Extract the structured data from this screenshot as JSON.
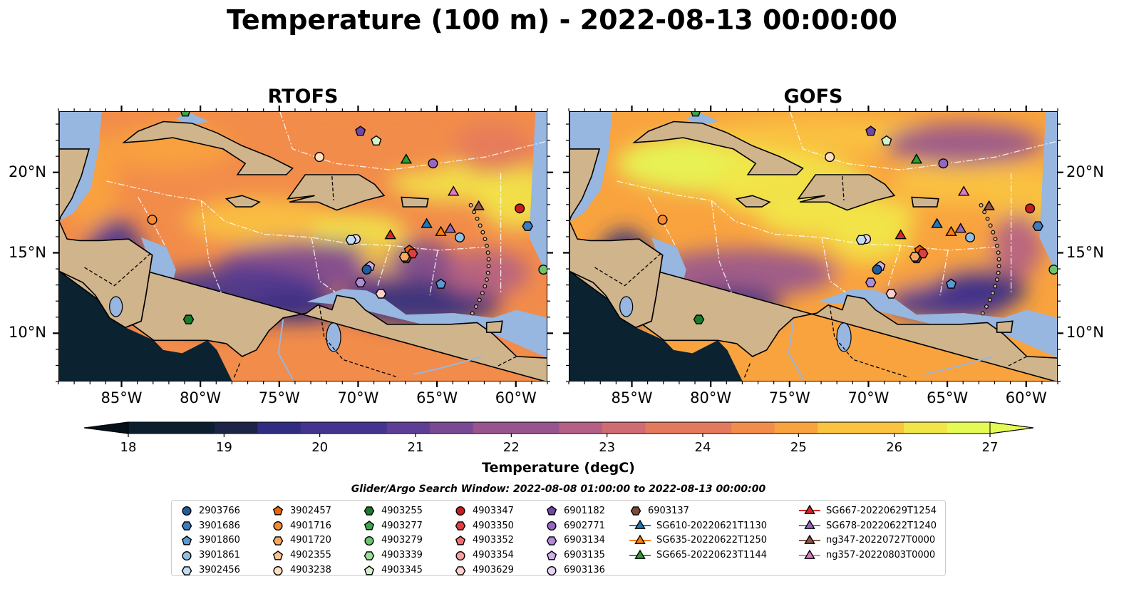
{
  "title": "Temperature (100 m) - 2022-08-13 00:00:00",
  "panels": [
    {
      "title": "RTOFS"
    },
    {
      "title": "GOFS"
    }
  ],
  "axes": {
    "lon_ticks": [
      "85°W",
      "80°W",
      "75°W",
      "70°W",
      "65°W",
      "60°W"
    ],
    "lon_values": [
      -85,
      -80,
      -75,
      -70,
      -65,
      -60
    ],
    "lat_ticks": [
      "20°N",
      "15°N",
      "10°N"
    ],
    "lat_values": [
      20,
      15,
      10
    ],
    "extent": {
      "lon": [
        -89,
        -58
      ],
      "lat": [
        7,
        23.8
      ]
    }
  },
  "colorbar": {
    "label": "Temperature (degC)",
    "ticks": [
      "18",
      "19",
      "20",
      "21",
      "22",
      "23",
      "24",
      "25",
      "26",
      "27"
    ],
    "range": [
      18,
      27
    ],
    "colormap": [
      "#0b1f2e",
      "#1c2448",
      "#2f2c82",
      "#45348f",
      "#5e3d97",
      "#7a4994",
      "#97548f",
      "#b45f85",
      "#cf6b72",
      "#e47a5d",
      "#f28c4a",
      "#f9a33f",
      "#fac340",
      "#f2e548",
      "#e5fa55"
    ]
  },
  "search_window": "Glider/Argo Search Window: 2022-08-08 01:00:00 to 2022-08-13 00:00:00",
  "legend": [
    [
      {
        "label": "2903766",
        "marker": "circle",
        "color": "#1f5c9e"
      },
      {
        "label": "3901686",
        "marker": "hexagon",
        "color": "#3d7cc0"
      },
      {
        "label": "3901860",
        "marker": "pentagon",
        "color": "#5a9ad2"
      },
      {
        "label": "3901861",
        "marker": "circle",
        "color": "#8fc0e3"
      },
      {
        "label": "3902456",
        "marker": "hexagon",
        "color": "#c2dcf0"
      }
    ],
    [
      {
        "label": "3902457",
        "marker": "pentagon",
        "color": "#e8650a"
      },
      {
        "label": "4901716",
        "marker": "circle",
        "color": "#f48b3a"
      },
      {
        "label": "4901720",
        "marker": "hexagon",
        "color": "#f8a760"
      },
      {
        "label": "4902355",
        "marker": "pentagon",
        "color": "#fbc48d"
      },
      {
        "label": "4903238",
        "marker": "circle",
        "color": "#fde0c0"
      }
    ],
    [
      {
        "label": "4903255",
        "marker": "hexagon",
        "color": "#1a7a2a"
      },
      {
        "label": "4903277",
        "marker": "pentagon",
        "color": "#3ea34a"
      },
      {
        "label": "4903279",
        "marker": "circle",
        "color": "#6cc56e"
      },
      {
        "label": "4903339",
        "marker": "hexagon",
        "color": "#9fdb98"
      },
      {
        "label": "4903345",
        "marker": "pentagon",
        "color": "#d3f2c9"
      }
    ],
    [
      {
        "label": "4903347",
        "marker": "circle",
        "color": "#c81d1d"
      },
      {
        "label": "4903350",
        "marker": "hexagon",
        "color": "#de4040"
      },
      {
        "label": "4903352",
        "marker": "pentagon",
        "color": "#ee7070"
      },
      {
        "label": "4903354",
        "marker": "circle",
        "color": "#f7a0a0"
      },
      {
        "label": "4903629",
        "marker": "hexagon",
        "color": "#fdd0cc"
      }
    ],
    [
      {
        "label": "6901182",
        "marker": "pentagon",
        "color": "#7048a8"
      },
      {
        "label": "6902771",
        "marker": "circle",
        "color": "#9468c2"
      },
      {
        "label": "6903134",
        "marker": "hexagon",
        "color": "#b28ad6"
      },
      {
        "label": "6903135",
        "marker": "pentagon",
        "color": "#ceb0e8"
      },
      {
        "label": "6903136",
        "marker": "circle",
        "color": "#e6d4f6"
      }
    ],
    [
      {
        "label": "6903137",
        "marker": "hexagon",
        "color": "#7a4a3c"
      },
      {
        "label": "SG610-20220621T1130",
        "marker": "triangle",
        "color": "#1f77b4"
      },
      {
        "label": "SG635-20220622T1250",
        "marker": "triangle",
        "color": "#ff7f0e"
      },
      {
        "label": "SG665-20220623T1144",
        "marker": "triangle",
        "color": "#2ca02c"
      }
    ],
    [
      {
        "label": "SG667-20220629T1254",
        "marker": "triangle",
        "color": "#d62728"
      },
      {
        "label": "SG678-20220622T1240",
        "marker": "triangle",
        "color": "#9467bd"
      },
      {
        "label": "ng347-20220727T0000",
        "marker": "triangle",
        "color": "#8c564b"
      },
      {
        "label": "ng357-20220803T0000",
        "marker": "triangle",
        "color": "#e377c2"
      }
    ]
  ],
  "observations": [
    {
      "id": "4903238",
      "lon": -72.5,
      "lat": 21.0
    },
    {
      "id": "4903345",
      "lon": -68.9,
      "lat": 22.0
    },
    {
      "id": "6901182",
      "lon": -69.9,
      "lat": 22.6
    },
    {
      "id": "SG665-20220623T1144",
      "lon": -67.0,
      "lat": 20.8
    },
    {
      "id": "6902771",
      "lon": -65.3,
      "lat": 20.6
    },
    {
      "id": "ng357-20220803T0000",
      "lon": -64.0,
      "lat": 18.8
    },
    {
      "id": "ng347-20220727T0000",
      "lon": -62.4,
      "lat": 17.9
    },
    {
      "id": "4903347",
      "lon": -59.8,
      "lat": 17.8
    },
    {
      "id": "3901686",
      "lon": -59.3,
      "lat": 16.7
    },
    {
      "id": "4901716",
      "lon": -83.1,
      "lat": 17.1
    },
    {
      "id": "SG610-20220621T1130",
      "lon": -65.7,
      "lat": 16.8
    },
    {
      "id": "SG667-20220629T1254",
      "lon": -68.0,
      "lat": 16.1
    },
    {
      "id": "SG635-20220622T1250",
      "lon": -64.8,
      "lat": 16.3
    },
    {
      "id": "SG678-20220622T1240",
      "lon": -64.2,
      "lat": 16.5
    },
    {
      "id": "3901861",
      "lon": -63.6,
      "lat": 16.0
    },
    {
      "id": "6903136",
      "lon": -70.2,
      "lat": 15.9
    },
    {
      "id": "3902456",
      "lon": -70.5,
      "lat": 15.85
    },
    {
      "id": "3902457",
      "lon": -66.8,
      "lat": 15.2
    },
    {
      "id": "4903350",
      "lon": -66.6,
      "lat": 15.0
    },
    {
      "id": "6903137",
      "lon": -67.0,
      "lat": 14.7
    },
    {
      "id": "4901720",
      "lon": -67.1,
      "lat": 14.8
    },
    {
      "id": "6903135",
      "lon": -69.3,
      "lat": 14.2
    },
    {
      "id": "2903766",
      "lon": -69.5,
      "lat": 14.0
    },
    {
      "id": "6903134",
      "lon": -69.9,
      "lat": 13.2
    },
    {
      "id": "4903629",
      "lon": -68.6,
      "lat": 12.5
    },
    {
      "id": "3901860",
      "lon": -64.8,
      "lat": 13.1
    },
    {
      "id": "4903255",
      "lon": -80.8,
      "lat": 10.9
    },
    {
      "id": "4903277",
      "lon": -81.0,
      "lat": 23.8
    },
    {
      "id": "4903279",
      "lon": -58.3,
      "lat": 14.0
    }
  ]
}
